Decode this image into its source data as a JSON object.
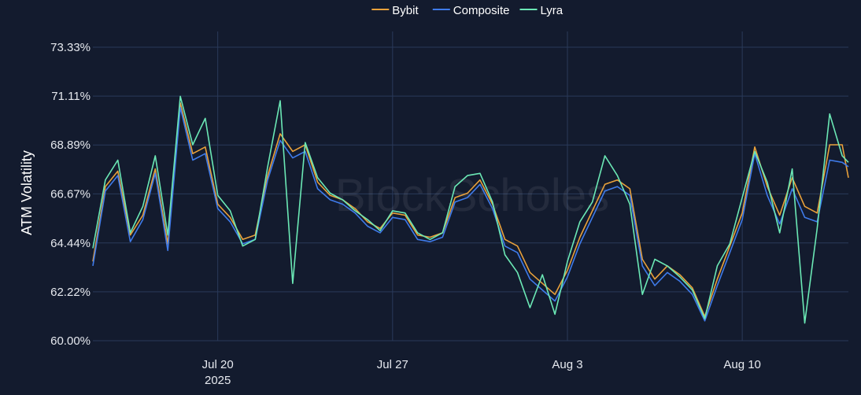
{
  "chart_data": {
    "type": "line",
    "watermark": "BlockScholes",
    "ylabel": "ATM Volatility",
    "ylim": [
      60.0,
      73.33
    ],
    "y_ticks": [
      "60.00%",
      "62.22%",
      "64.44%",
      "66.67%",
      "68.89%",
      "71.11%",
      "73.33%"
    ],
    "x_range": [
      "2025-07-15",
      "2025-08-14T06:00"
    ],
    "x_ticks": [
      {
        "date": "2025-07-20",
        "label": "Jul 20",
        "sublabel": "2025"
      },
      {
        "date": "2025-07-27",
        "label": "Jul 27",
        "sublabel": ""
      },
      {
        "date": "2025-08-03",
        "label": "Aug 3",
        "sublabel": ""
      },
      {
        "date": "2025-08-10",
        "label": "Aug 10",
        "sublabel": ""
      }
    ],
    "series": [
      {
        "name": "Bybit",
        "color": "#e9a13b",
        "x": [
          "2025-07-15",
          "2025-07-15T12:00",
          "2025-07-16",
          "2025-07-16T12:00",
          "2025-07-17",
          "2025-07-17T12:00",
          "2025-07-18",
          "2025-07-18T12:00",
          "2025-07-19",
          "2025-07-19T12:00",
          "2025-07-20",
          "2025-07-20T12:00",
          "2025-07-21",
          "2025-07-21T12:00",
          "2025-07-22",
          "2025-07-22T12:00",
          "2025-07-23",
          "2025-07-23T12:00",
          "2025-07-24",
          "2025-07-24T12:00",
          "2025-07-25",
          "2025-07-25T12:00",
          "2025-07-26",
          "2025-07-26T12:00",
          "2025-07-27",
          "2025-07-27T12:00",
          "2025-07-28",
          "2025-07-28T12:00",
          "2025-07-29",
          "2025-07-29T12:00",
          "2025-07-30",
          "2025-07-30T12:00",
          "2025-07-31",
          "2025-07-31T12:00",
          "2025-08-01",
          "2025-08-01T12:00",
          "2025-08-02",
          "2025-08-02T12:00",
          "2025-08-03",
          "2025-08-03T12:00",
          "2025-08-04",
          "2025-08-04T12:00",
          "2025-08-05",
          "2025-08-05T12:00",
          "2025-08-06",
          "2025-08-06T12:00",
          "2025-08-07",
          "2025-08-07T12:00",
          "2025-08-08",
          "2025-08-08T12:00",
          "2025-08-09",
          "2025-08-09T12:00",
          "2025-08-10",
          "2025-08-10T12:00",
          "2025-08-11",
          "2025-08-11T12:00",
          "2025-08-12",
          "2025-08-12T12:00",
          "2025-08-13",
          "2025-08-13T12:00",
          "2025-08-14",
          "2025-08-14T06:00"
        ],
        "values": [
          63.6,
          67.0,
          67.7,
          64.8,
          65.7,
          67.8,
          64.4,
          70.8,
          68.5,
          68.8,
          66.2,
          65.6,
          64.6,
          64.8,
          67.5,
          69.4,
          68.6,
          68.9,
          67.2,
          66.6,
          66.4,
          66.0,
          65.4,
          65.1,
          65.8,
          65.7,
          64.8,
          64.7,
          64.9,
          66.5,
          66.7,
          67.3,
          66.2,
          64.6,
          64.3,
          63.1,
          62.6,
          62.1,
          63.2,
          64.7,
          65.9,
          67.1,
          67.3,
          66.9,
          63.7,
          62.8,
          63.4,
          63.0,
          62.4,
          61.1,
          62.8,
          64.3,
          65.8,
          68.8,
          67.0,
          65.7,
          67.4,
          66.1,
          65.8,
          68.9,
          68.9,
          67.4
        ]
      },
      {
        "name": "Composite",
        "color": "#3f7bea",
        "x": [
          "2025-07-15",
          "2025-07-15T12:00",
          "2025-07-16",
          "2025-07-16T12:00",
          "2025-07-17",
          "2025-07-17T12:00",
          "2025-07-18",
          "2025-07-18T12:00",
          "2025-07-19",
          "2025-07-19T12:00",
          "2025-07-20",
          "2025-07-20T12:00",
          "2025-07-21",
          "2025-07-21T12:00",
          "2025-07-22",
          "2025-07-22T12:00",
          "2025-07-23",
          "2025-07-23T12:00",
          "2025-07-24",
          "2025-07-24T12:00",
          "2025-07-25",
          "2025-07-25T12:00",
          "2025-07-26",
          "2025-07-26T12:00",
          "2025-07-27",
          "2025-07-27T12:00",
          "2025-07-28",
          "2025-07-28T12:00",
          "2025-07-29",
          "2025-07-29T12:00",
          "2025-07-30",
          "2025-07-30T12:00",
          "2025-07-31",
          "2025-07-31T12:00",
          "2025-08-01",
          "2025-08-01T12:00",
          "2025-08-02",
          "2025-08-02T12:00",
          "2025-08-03",
          "2025-08-03T12:00",
          "2025-08-04",
          "2025-08-04T12:00",
          "2025-08-05",
          "2025-08-05T12:00",
          "2025-08-06",
          "2025-08-06T12:00",
          "2025-08-07",
          "2025-08-07T12:00",
          "2025-08-08",
          "2025-08-08T12:00",
          "2025-08-09",
          "2025-08-09T12:00",
          "2025-08-10",
          "2025-08-10T12:00",
          "2025-08-11",
          "2025-08-11T12:00",
          "2025-08-12",
          "2025-08-12T12:00",
          "2025-08-13",
          "2025-08-13T12:00",
          "2025-08-14",
          "2025-08-14T06:00"
        ],
        "values": [
          63.4,
          66.8,
          67.5,
          64.5,
          65.5,
          67.6,
          64.1,
          70.6,
          68.2,
          68.5,
          66.0,
          65.4,
          64.4,
          64.6,
          67.3,
          69.1,
          68.3,
          68.6,
          66.9,
          66.4,
          66.2,
          65.8,
          65.2,
          64.9,
          65.6,
          65.5,
          64.6,
          64.5,
          64.7,
          66.3,
          66.5,
          67.1,
          66.0,
          64.3,
          64.0,
          62.8,
          62.3,
          61.8,
          62.9,
          64.4,
          65.6,
          66.8,
          67.0,
          66.6,
          63.4,
          62.5,
          63.1,
          62.7,
          62.1,
          60.9,
          62.5,
          64.0,
          65.5,
          68.5,
          66.6,
          65.3,
          66.9,
          65.6,
          65.4,
          68.2,
          68.1,
          67.9
        ]
      },
      {
        "name": "Lyra",
        "color": "#6be8b5",
        "x": [
          "2025-07-15",
          "2025-07-15T12:00",
          "2025-07-16",
          "2025-07-16T12:00",
          "2025-07-17",
          "2025-07-17T12:00",
          "2025-07-18",
          "2025-07-18T12:00",
          "2025-07-19",
          "2025-07-19T12:00",
          "2025-07-20",
          "2025-07-20T12:00",
          "2025-07-21",
          "2025-07-21T12:00",
          "2025-07-22",
          "2025-07-22T12:00",
          "2025-07-23",
          "2025-07-23T12:00",
          "2025-07-24",
          "2025-07-24T12:00",
          "2025-07-25",
          "2025-07-25T12:00",
          "2025-07-26",
          "2025-07-26T12:00",
          "2025-07-27",
          "2025-07-27T12:00",
          "2025-07-28",
          "2025-07-28T12:00",
          "2025-07-29",
          "2025-07-29T12:00",
          "2025-07-30",
          "2025-07-30T12:00",
          "2025-07-31",
          "2025-07-31T12:00",
          "2025-08-01",
          "2025-08-01T12:00",
          "2025-08-02",
          "2025-08-02T12:00",
          "2025-08-03",
          "2025-08-03T12:00",
          "2025-08-04",
          "2025-08-04T12:00",
          "2025-08-05",
          "2025-08-05T12:00",
          "2025-08-06",
          "2025-08-06T12:00",
          "2025-08-07",
          "2025-08-07T12:00",
          "2025-08-08",
          "2025-08-08T12:00",
          "2025-08-09",
          "2025-08-09T12:00",
          "2025-08-10",
          "2025-08-10T12:00",
          "2025-08-11",
          "2025-08-11T12:00",
          "2025-08-12",
          "2025-08-12T12:00",
          "2025-08-13",
          "2025-08-13T12:00",
          "2025-08-14",
          "2025-08-14T06:00"
        ],
        "values": [
          64.2,
          67.3,
          68.2,
          64.9,
          66.1,
          68.4,
          64.8,
          71.1,
          68.9,
          70.1,
          66.6,
          65.9,
          64.3,
          64.6,
          67.9,
          70.9,
          62.6,
          69.0,
          67.4,
          66.7,
          66.4,
          65.9,
          65.5,
          65.0,
          65.9,
          65.8,
          64.9,
          64.6,
          64.9,
          67.0,
          67.5,
          67.6,
          66.3,
          63.9,
          63.1,
          61.5,
          63.0,
          61.2,
          63.6,
          65.4,
          66.3,
          68.4,
          67.5,
          66.2,
          62.1,
          63.7,
          63.4,
          62.9,
          62.3,
          61.0,
          63.4,
          64.4,
          66.5,
          68.6,
          67.2,
          64.9,
          67.8,
          60.8,
          65.1,
          70.3,
          68.4,
          68.1
        ]
      }
    ]
  }
}
